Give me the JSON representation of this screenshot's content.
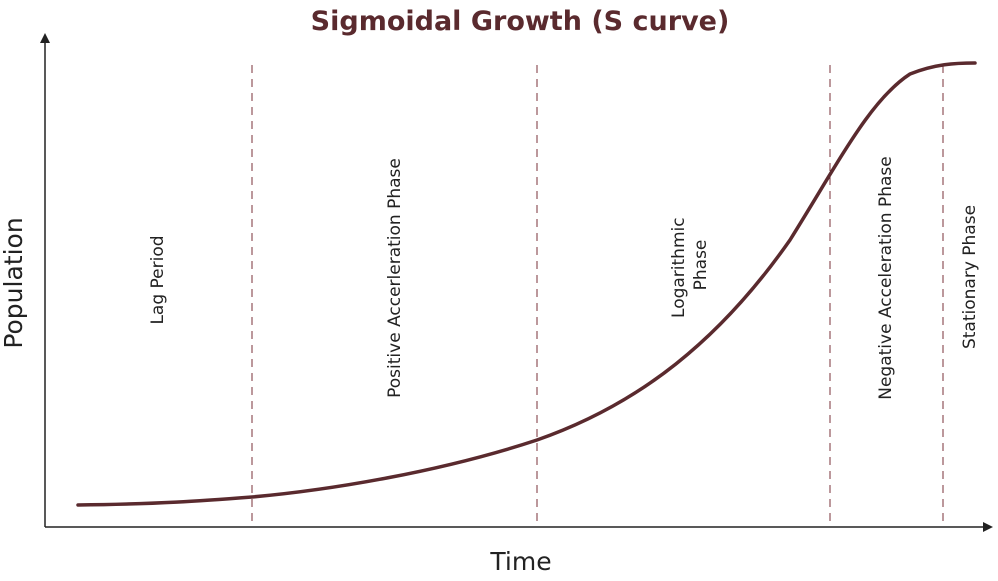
{
  "diagram": {
    "title": "Sigmoidal Growth (S curve)",
    "x_axis_label": "Time",
    "y_axis_label": "Population",
    "phases": [
      {
        "lines": [
          "Lag Period"
        ]
      },
      {
        "lines": [
          "Positive Accerleration Phase"
        ]
      },
      {
        "lines": [
          "Logarithmic",
          "Phase"
        ]
      },
      {
        "lines": [
          "Negative Acceleration Phase"
        ]
      },
      {
        "lines": [
          "Stationary Phase"
        ]
      }
    ],
    "colors": {
      "curve": "#5a2a2e",
      "divider": "#7a3038",
      "title": "#5a2a2e",
      "axis": "#222222"
    }
  }
}
